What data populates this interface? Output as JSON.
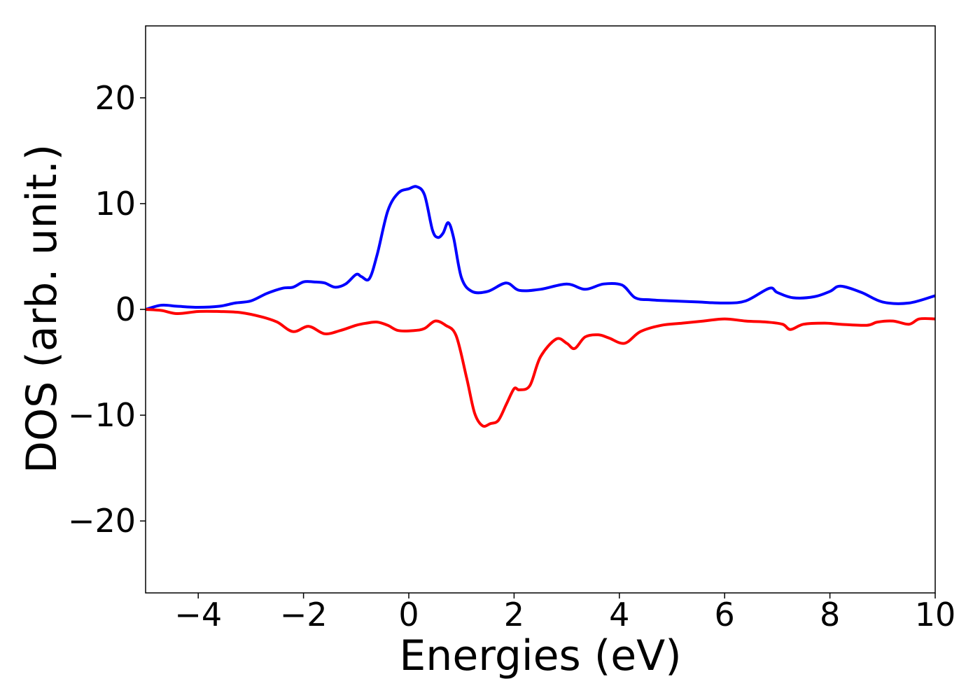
{
  "chart_data": {
    "type": "line",
    "title": "",
    "xlabel": "Energies (eV)",
    "ylabel": "DOS (arb. unit.)",
    "xlim": [
      -5,
      10
    ],
    "ylim": [
      -26.8,
      26.8
    ],
    "grid": false,
    "legend": "none",
    "xticks": [
      {
        "value": -4,
        "label": "−4"
      },
      {
        "value": -2,
        "label": "−2"
      },
      {
        "value": 0,
        "label": "0"
      },
      {
        "value": 2,
        "label": "2"
      },
      {
        "value": 4,
        "label": "4"
      },
      {
        "value": 6,
        "label": "6"
      },
      {
        "value": 8,
        "label": "8"
      },
      {
        "value": 10,
        "label": "10"
      }
    ],
    "yticks": [
      {
        "value": -20,
        "label": "−20"
      },
      {
        "value": -10,
        "label": "−10"
      },
      {
        "value": 0,
        "label": "0"
      },
      {
        "value": 10,
        "label": "10"
      },
      {
        "value": 20,
        "label": "20"
      }
    ],
    "series": [
      {
        "color": "#0000ff",
        "x": [
          -5.0,
          -4.7,
          -4.4,
          -4.0,
          -3.6,
          -3.3,
          -3.0,
          -2.7,
          -2.4,
          -2.2,
          -2.0,
          -1.8,
          -1.6,
          -1.4,
          -1.2,
          -1.0,
          -0.9,
          -0.75,
          -0.6,
          -0.4,
          -0.2,
          0.0,
          0.15,
          0.3,
          0.45,
          0.55,
          0.65,
          0.75,
          0.85,
          1.0,
          1.2,
          1.5,
          1.85,
          2.1,
          2.5,
          3.0,
          3.35,
          3.7,
          4.05,
          4.3,
          4.6,
          5.0,
          5.5,
          6.0,
          6.4,
          6.85,
          7.0,
          7.3,
          7.7,
          8.0,
          8.2,
          8.6,
          9.0,
          9.5,
          10.0
        ],
        "values": [
          0.0,
          0.4,
          0.3,
          0.2,
          0.3,
          0.6,
          0.8,
          1.5,
          2.0,
          2.1,
          2.6,
          2.6,
          2.5,
          2.1,
          2.4,
          3.3,
          3.1,
          2.9,
          5.2,
          9.3,
          11.0,
          11.4,
          11.6,
          10.8,
          7.5,
          6.8,
          7.2,
          8.2,
          6.8,
          3.0,
          1.7,
          1.7,
          2.5,
          1.8,
          1.9,
          2.4,
          1.9,
          2.4,
          2.3,
          1.1,
          0.9,
          0.8,
          0.7,
          0.6,
          0.8,
          2.0,
          1.6,
          1.1,
          1.2,
          1.7,
          2.2,
          1.6,
          0.7,
          0.6,
          1.3
        ]
      },
      {
        "color": "#ff0000",
        "x": [
          -5.0,
          -4.7,
          -4.4,
          -4.0,
          -3.6,
          -3.2,
          -2.8,
          -2.5,
          -2.2,
          -1.9,
          -1.6,
          -1.3,
          -1.0,
          -0.8,
          -0.6,
          -0.4,
          -0.2,
          0.1,
          0.3,
          0.5,
          0.7,
          0.9,
          1.1,
          1.25,
          1.4,
          1.55,
          1.7,
          1.85,
          2.0,
          2.1,
          2.3,
          2.5,
          2.8,
          3.0,
          3.15,
          3.35,
          3.6,
          3.8,
          4.1,
          4.4,
          4.8,
          5.2,
          5.6,
          6.0,
          6.4,
          6.8,
          7.1,
          7.25,
          7.5,
          7.9,
          8.2,
          8.7,
          8.9,
          9.2,
          9.5,
          9.7,
          10.0
        ],
        "values": [
          0.0,
          -0.1,
          -0.4,
          -0.2,
          -0.2,
          -0.3,
          -0.7,
          -1.2,
          -2.1,
          -1.6,
          -2.3,
          -2.0,
          -1.5,
          -1.3,
          -1.2,
          -1.5,
          -2.0,
          -2.0,
          -1.8,
          -1.1,
          -1.5,
          -2.5,
          -6.5,
          -9.8,
          -11.0,
          -10.8,
          -10.5,
          -9.0,
          -7.5,
          -7.6,
          -7.2,
          -4.5,
          -2.8,
          -3.2,
          -3.7,
          -2.6,
          -2.4,
          -2.7,
          -3.2,
          -2.1,
          -1.5,
          -1.3,
          -1.1,
          -0.9,
          -1.1,
          -1.2,
          -1.4,
          -1.9,
          -1.4,
          -1.3,
          -1.4,
          -1.5,
          -1.2,
          -1.1,
          -1.4,
          -0.9,
          -0.9
        ]
      }
    ]
  }
}
